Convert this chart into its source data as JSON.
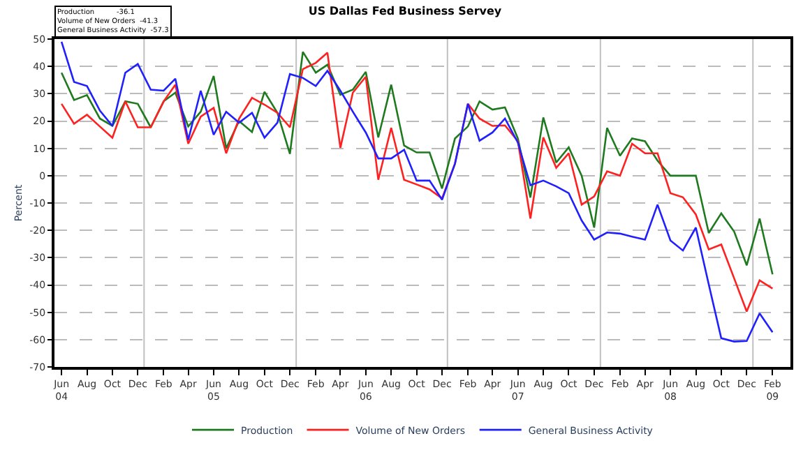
{
  "chart_data": {
    "type": "line",
    "title": "US Dallas Fed Business Servey",
    "ylabel": "Percent",
    "x": [
      "2004-06",
      "2004-07",
      "2004-08",
      "2004-09",
      "2004-10",
      "2004-11",
      "2004-12",
      "2005-01",
      "2005-02",
      "2005-03",
      "2005-04",
      "2005-05",
      "2005-06",
      "2005-07",
      "2005-08",
      "2005-09",
      "2005-10",
      "2005-11",
      "2005-12",
      "2006-01",
      "2006-02",
      "2006-03",
      "2006-04",
      "2006-05",
      "2006-06",
      "2006-07",
      "2006-08",
      "2006-09",
      "2006-10",
      "2006-11",
      "2006-12",
      "2007-01",
      "2007-02",
      "2007-03",
      "2007-04",
      "2007-05",
      "2007-06",
      "2007-07",
      "2007-08",
      "2007-09",
      "2007-10",
      "2007-11",
      "2007-12",
      "2008-01",
      "2008-02",
      "2008-03",
      "2008-04",
      "2008-05",
      "2008-06",
      "2008-07",
      "2008-08",
      "2008-09",
      "2008-10",
      "2008-11",
      "2008-12",
      "2009-01",
      "2009-02"
    ],
    "series": [
      {
        "name": "Production",
        "color": "#1f7a1f",
        "values": [
          37.7,
          27.7,
          29.5,
          20.9,
          18.2,
          27.2,
          26.3,
          17.7,
          27.2,
          30.4,
          18,
          23.4,
          36.5,
          10,
          20,
          16,
          30.7,
          23,
          8,
          45.3,
          37.7,
          40.6,
          29.6,
          31.5,
          38,
          14,
          33.3,
          11,
          8.5,
          8.5,
          -4.7,
          13.6,
          18,
          27.2,
          24.2,
          25,
          13.6,
          -8,
          21.3,
          4.8,
          10.4,
          0,
          -19,
          17.5,
          7.3,
          13.6,
          12.6,
          5.5,
          0,
          0,
          0,
          -21,
          -13.8,
          -20.5,
          -32.8,
          -15.7,
          -36.1
        ]
      },
      {
        "name": "Volume of New Orders",
        "color": "#ff2020",
        "values": [
          26.3,
          19,
          22.3,
          18,
          13.9,
          27.2,
          17.7,
          17.7,
          27.2,
          33.3,
          11.7,
          21.6,
          24.8,
          8.2,
          20.9,
          28.5,
          26,
          23,
          17.7,
          39,
          41.3,
          45,
          10.2,
          30.4,
          36.2,
          -1.5,
          17.5,
          -1.5,
          -3.2,
          -5,
          -8.3,
          4.4,
          26.3,
          20.9,
          18.2,
          18.4,
          12.6,
          -15.7,
          14,
          2.9,
          8.2,
          -10.6,
          -7.6,
          1.6,
          0,
          11.7,
          8.2,
          8.2,
          -6.4,
          -7.9,
          -14.2,
          -27,
          -25.2,
          -37.6,
          -49.7,
          -38.3,
          -41.3
        ]
      },
      {
        "name": "General Business Activity",
        "color": "#2020ff",
        "values": [
          49,
          34.3,
          32.8,
          23.8,
          18.2,
          37.7,
          40.9,
          31.5,
          31.1,
          35.5,
          13.1,
          31.1,
          15,
          23.4,
          19.4,
          23,
          13.9,
          19.4,
          37.2,
          35.8,
          32.8,
          38.4,
          31.1,
          23.4,
          15.8,
          6.3,
          6.3,
          9.5,
          -1.8,
          -1.8,
          -8.8,
          4.4,
          26.3,
          12.8,
          15.8,
          20.9,
          12.1,
          -3.5,
          -1.8,
          -3.9,
          -6.4,
          -16.4,
          -23.4,
          -20.8,
          -21.2,
          -22.3,
          -23.4,
          -10.6,
          -23.7,
          -27.4,
          -19,
          -39.8,
          -59.5,
          -60.7,
          -60.5,
          -50.4,
          -57.3
        ]
      }
    ],
    "xlim": [
      "2004-05-15",
      "2009-03-16"
    ],
    "xticks": [
      {
        "value": "2004-06",
        "label": "Jun\n04"
      },
      {
        "value": "2004-08",
        "label": "Aug"
      },
      {
        "value": "2004-10",
        "label": "Oct"
      },
      {
        "value": "2004-12",
        "label": "Dec"
      },
      {
        "value": "2005-02",
        "label": "Feb"
      },
      {
        "value": "2005-04",
        "label": "Apr"
      },
      {
        "value": "2005-06",
        "label": "Jun\n05"
      },
      {
        "value": "2005-08",
        "label": "Aug"
      },
      {
        "value": "2005-10",
        "label": "Oct"
      },
      {
        "value": "2005-12",
        "label": "Dec"
      },
      {
        "value": "2006-02",
        "label": "Feb"
      },
      {
        "value": "2006-04",
        "label": "Apr"
      },
      {
        "value": "2006-06",
        "label": "Jun\n06"
      },
      {
        "value": "2006-08",
        "label": "Aug"
      },
      {
        "value": "2006-10",
        "label": "Oct"
      },
      {
        "value": "2006-12",
        "label": "Dec"
      },
      {
        "value": "2007-02",
        "label": "Feb"
      },
      {
        "value": "2007-04",
        "label": "Apr"
      },
      {
        "value": "2007-06",
        "label": "Jun\n07"
      },
      {
        "value": "2007-08",
        "label": "Aug"
      },
      {
        "value": "2007-10",
        "label": "Oct"
      },
      {
        "value": "2007-12",
        "label": "Dec"
      },
      {
        "value": "2008-02",
        "label": "Feb"
      },
      {
        "value": "2008-04",
        "label": "Apr"
      },
      {
        "value": "2008-06",
        "label": "Jun\n08"
      },
      {
        "value": "2008-08",
        "label": "Aug"
      },
      {
        "value": "2008-10",
        "label": "Oct"
      },
      {
        "value": "2008-12",
        "label": "Dec"
      },
      {
        "value": "2009-02",
        "label": "Feb\n09"
      }
    ],
    "ylim": [
      -70,
      50
    ],
    "yticks": [
      -70,
      -60,
      -50,
      -40,
      -30,
      -20,
      -10,
      0,
      10,
      20,
      30,
      40,
      50
    ],
    "grid": "y",
    "legend": "bottom",
    "marker": "none",
    "line_style": "solid",
    "ref_lines": [
      {
        "axis": "x",
        "value": "2004-12-16",
        "color": "#c0c0c0"
      },
      {
        "axis": "x",
        "value": "2005-12-16",
        "color": "#c0c0c0"
      },
      {
        "axis": "x",
        "value": "2006-12-14",
        "color": "#c0c0c0"
      },
      {
        "axis": "x",
        "value": "2007-12-16",
        "color": "#c0c0c0"
      },
      {
        "axis": "x",
        "value": "2008-12-16",
        "color": "#c0c0c0"
      }
    ],
    "annotations": [
      "Production          -36.1",
      "Volume of New Orders  -41.3",
      "General Business Activity  -57.3"
    ]
  }
}
